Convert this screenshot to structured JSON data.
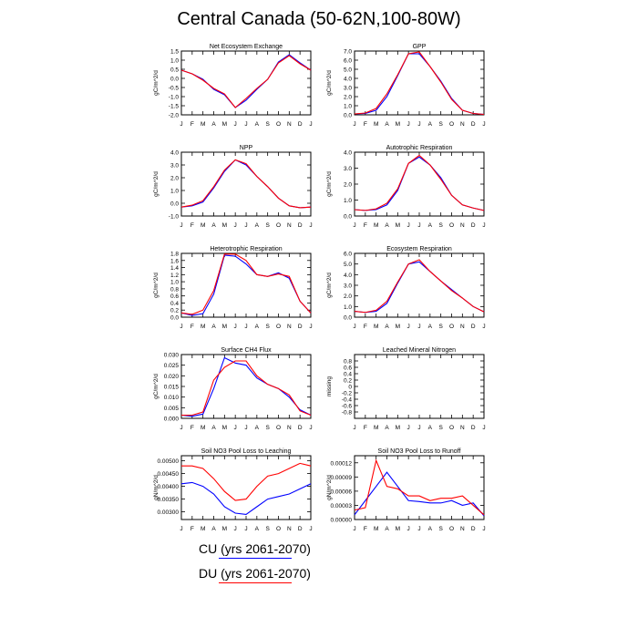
{
  "title": "Central Canada (50-62N,100-80W)",
  "months": [
    "J",
    "F",
    "M",
    "A",
    "M",
    "J",
    "J",
    "A",
    "S",
    "O",
    "N",
    "D",
    "J"
  ],
  "legend": [
    {
      "label": "CU (yrs 2061-2070)",
      "color": "#0000ff"
    },
    {
      "label": "DU (yrs 2061-2070)",
      "color": "#ff0000"
    }
  ],
  "chart_data": [
    {
      "type": "line",
      "title": "Net Ecosystem Exchange",
      "ylabel": "gC/m^2/d",
      "ylim": [
        -2.0,
        1.5
      ],
      "yticks": [
        "1.5",
        "1.0",
        "0.5",
        "0.0",
        "-0.5",
        "-1.0",
        "-1.5",
        "-2.0"
      ],
      "series": [
        {
          "values": [
            0.45,
            0.25,
            -0.05,
            -0.6,
            -0.9,
            -1.6,
            -1.2,
            -0.6,
            -0.05,
            0.9,
            1.3,
            0.85,
            0.45
          ]
        },
        {
          "values": [
            0.45,
            0.25,
            -0.1,
            -0.55,
            -0.85,
            -1.6,
            -1.1,
            -0.55,
            -0.05,
            0.85,
            1.25,
            0.8,
            0.45
          ]
        }
      ]
    },
    {
      "type": "line",
      "title": "GPP",
      "ylabel": "gC/m^2/d",
      "ylim": [
        0,
        7.0
      ],
      "yticks": [
        "7.0",
        "6.0",
        "5.0",
        "4.0",
        "3.0",
        "2.0",
        "1.0",
        "0.0"
      ],
      "series": [
        {
          "values": [
            0.1,
            0.15,
            0.5,
            2.0,
            4.3,
            6.7,
            6.7,
            5.3,
            3.7,
            1.8,
            0.5,
            0.15,
            0.05
          ]
        },
        {
          "values": [
            0.1,
            0.2,
            0.7,
            2.3,
            4.4,
            6.7,
            6.9,
            5.3,
            3.6,
            1.7,
            0.5,
            0.15,
            0.05
          ]
        }
      ]
    },
    {
      "type": "line",
      "title": "NPP",
      "ylabel": "gC/m^2/d",
      "ylim": [
        -1.0,
        4.0
      ],
      "yticks": [
        "4.0",
        "3.0",
        "2.0",
        "1.0",
        "0.0",
        "-1.0"
      ],
      "series": [
        {
          "values": [
            -0.3,
            -0.2,
            0.1,
            1.2,
            2.5,
            3.4,
            3.0,
            2.1,
            1.3,
            0.4,
            -0.2,
            -0.35,
            -0.3
          ]
        },
        {
          "values": [
            -0.3,
            -0.15,
            0.2,
            1.3,
            2.6,
            3.4,
            3.1,
            2.1,
            1.3,
            0.4,
            -0.2,
            -0.35,
            -0.3
          ]
        }
      ]
    },
    {
      "type": "line",
      "title": "Autotrophic Respiration",
      "ylabel": "gC/m^2/d",
      "ylim": [
        0,
        4.0
      ],
      "yticks": [
        "4.0",
        "3.0",
        "2.0",
        "1.0",
        "0.0"
      ],
      "series": [
        {
          "values": [
            0.4,
            0.35,
            0.4,
            0.7,
            1.6,
            3.3,
            3.7,
            3.2,
            2.4,
            1.3,
            0.7,
            0.5,
            0.35
          ]
        },
        {
          "values": [
            0.4,
            0.35,
            0.45,
            0.8,
            1.7,
            3.3,
            3.8,
            3.2,
            2.3,
            1.3,
            0.7,
            0.5,
            0.35
          ]
        }
      ]
    },
    {
      "type": "line",
      "title": "Heterotrophic Respiration",
      "ylabel": "gC/m^2/d",
      "ylim": [
        0,
        1.8
      ],
      "yticks": [
        "1.8",
        "1.6",
        "1.4",
        "1.2",
        "1.0",
        "0.8",
        "0.6",
        "0.4",
        "0.2",
        "0.0"
      ],
      "series": [
        {
          "values": [
            0.12,
            0.05,
            0.1,
            0.65,
            1.75,
            1.72,
            1.5,
            1.2,
            1.15,
            1.25,
            1.1,
            0.45,
            0.12
          ]
        },
        {
          "values": [
            0.12,
            0.08,
            0.2,
            0.75,
            1.78,
            1.78,
            1.6,
            1.2,
            1.15,
            1.22,
            1.15,
            0.45,
            0.12
          ]
        }
      ]
    },
    {
      "type": "line",
      "title": "Ecosystem Respiration",
      "ylabel": "gC/m^2/d",
      "ylim": [
        0,
        6.0
      ],
      "yticks": [
        "6.0",
        "5.0",
        "4.0",
        "3.0",
        "2.0",
        "1.0",
        "0.0"
      ],
      "series": [
        {
          "values": [
            0.55,
            0.45,
            0.55,
            1.3,
            3.2,
            5.0,
            5.2,
            4.3,
            3.4,
            2.6,
            1.8,
            1.0,
            0.5
          ]
        },
        {
          "values": [
            0.55,
            0.45,
            0.65,
            1.5,
            3.3,
            5.0,
            5.4,
            4.3,
            3.4,
            2.5,
            1.8,
            1.0,
            0.5
          ]
        }
      ]
    },
    {
      "type": "line",
      "title": "Surface CH4 Flux",
      "ylabel": "gC/m^2/d",
      "ylim": [
        0,
        0.03
      ],
      "yticks": [
        "0.030",
        "0.025",
        "0.020",
        "0.015",
        "0.010",
        "0.005",
        "0.000"
      ],
      "series": [
        {
          "values": [
            0.0015,
            0.001,
            0.002,
            0.014,
            0.0285,
            0.026,
            0.025,
            0.019,
            0.016,
            0.014,
            0.01,
            0.004,
            0.0015
          ]
        },
        {
          "values": [
            0.0015,
            0.0015,
            0.003,
            0.018,
            0.024,
            0.027,
            0.027,
            0.02,
            0.016,
            0.014,
            0.011,
            0.0035,
            0.0015
          ]
        }
      ]
    },
    {
      "type": "line",
      "title": "Leached Mineral Nitrogen",
      "ylabel": "missing",
      "ylim": [
        -1.0,
        1.0
      ],
      "yticks": [
        "0.8",
        "0.6",
        "0.4",
        "0.2",
        "0",
        "-0.2",
        "-0.4",
        "-0.6",
        "-0.8"
      ],
      "series": []
    },
    {
      "type": "line",
      "title": "Soil NO3 Pool Loss to Leaching",
      "ylabel": "gN/m^2/d",
      "ylim": [
        0.0027,
        0.0052
      ],
      "yticks": [
        "0.00500",
        "0.00450",
        "0.00400",
        "0.00350",
        "0.00300"
      ],
      "series": [
        {
          "values": [
            0.0041,
            0.00415,
            0.004,
            0.0037,
            0.0032,
            0.00295,
            0.0029,
            0.0032,
            0.0035,
            0.0036,
            0.0037,
            0.0039,
            0.0041
          ]
        },
        {
          "values": [
            0.0048,
            0.0048,
            0.0047,
            0.0043,
            0.0038,
            0.00345,
            0.0035,
            0.004,
            0.0044,
            0.0045,
            0.0047,
            0.0049,
            0.0048
          ]
        }
      ]
    },
    {
      "type": "line",
      "title": "Soil NO3 Pool Loss to Runoff",
      "ylabel": "gN/m^2/d",
      "ylim": [
        0,
        0.000135
      ],
      "yticks": [
        "0.00012",
        "0.00009",
        "0.00006",
        "0.00003",
        "0.00000"
      ],
      "series": [
        {
          "values": [
            1e-05,
            4e-05,
            7e-05,
            0.0001,
            7e-05,
            4e-05,
            3.8e-05,
            3.5e-05,
            3.5e-05,
            4e-05,
            3e-05,
            3.5e-05,
            8e-06
          ]
        },
        {
          "values": [
            2e-05,
            2.5e-05,
            0.000125,
            7e-05,
            6.5e-05,
            5e-05,
            5e-05,
            4e-05,
            4.5e-05,
            4.5e-05,
            5e-05,
            3e-05,
            1e-05
          ]
        }
      ]
    }
  ]
}
